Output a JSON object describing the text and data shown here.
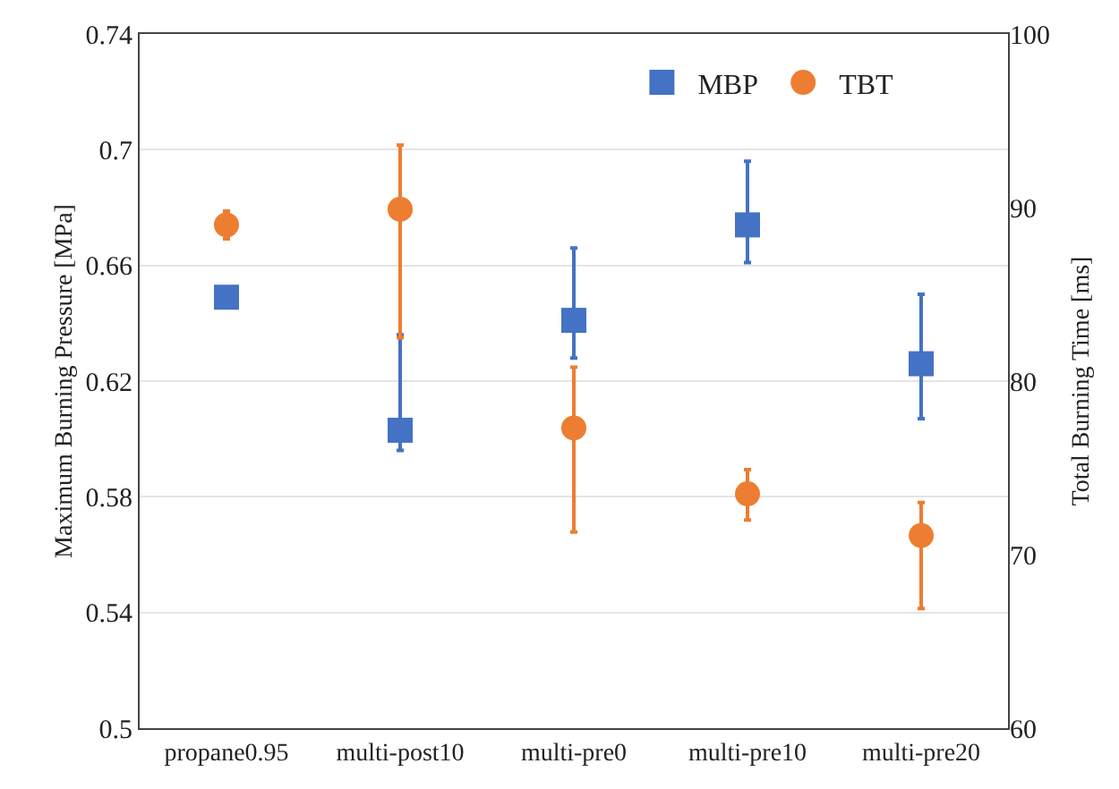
{
  "chart_data": {
    "type": "scatter",
    "ylabel": "Maximum Burning Pressure [MPa]",
    "y2label": "Total Burning Time [ms]",
    "categories": [
      "propane0.95",
      "multi-post10",
      "multi-pre0",
      "multi-pre10",
      "multi-pre20"
    ],
    "series": [
      {
        "name": "MBP",
        "color": "#4472c4",
        "marker": "square",
        "values": [
          0.649,
          0.603,
          0.641,
          0.674,
          0.626
        ],
        "errors": [
          0.003,
          [
            0.596,
            0.636
          ],
          [
            0.628,
            0.666
          ],
          [
            0.661,
            0.696
          ],
          [
            0.607,
            0.65
          ]
        ]
      },
      {
        "name": "TBT",
        "color": "#ed7d31",
        "marker": "circle",
        "axis": "y2",
        "values": [
          89.0,
          89.9,
          77.3,
          73.5,
          71.1
        ],
        "errors": [
          0.8,
          [
            82.5,
            93.6
          ],
          [
            71.3,
            80.8
          ],
          [
            72.0,
            74.9
          ],
          [
            66.9,
            73.0
          ]
        ]
      }
    ],
    "ylim": [
      0.5,
      0.74
    ],
    "yticks": [
      0.5,
      0.54,
      0.58,
      0.62,
      0.66,
      0.7,
      0.74
    ],
    "y2lim": [
      60,
      100
    ],
    "y2ticks": [
      60,
      70,
      80,
      90,
      100
    ],
    "grid": "y",
    "legend": "top"
  }
}
